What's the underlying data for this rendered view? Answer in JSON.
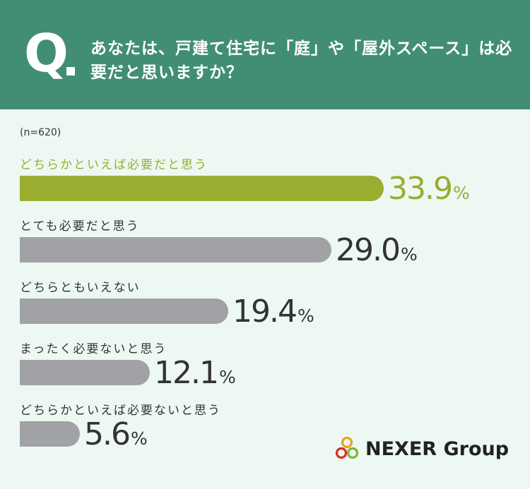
{
  "question": {
    "mark": "Q",
    "text": "あなたは、戸建て住宅に「庭」や「屋外スペース」は必要だと思いますか？"
  },
  "sample_size": "(n=620)",
  "colors": {
    "header": "#428e75",
    "background": "#eef8f3",
    "highlight": "#9aad30",
    "bar": "#a1a2a6",
    "text": "#333333"
  },
  "chart_data": {
    "type": "bar",
    "orientation": "horizontal",
    "unit": "%",
    "categories": [
      "どちらかといえば必要だと思う",
      "とても必要だと思う",
      "どちらともいえない",
      "まったく必要ないと思う",
      "どちらかといえば必要ないと思う"
    ],
    "values": [
      33.9,
      29.0,
      19.4,
      12.1,
      5.6
    ],
    "labels": [
      "33.9",
      "29.0",
      "19.4",
      "12.1",
      "5.6"
    ],
    "highlight_index": 0
  },
  "logo": {
    "text": "NEXER Group",
    "icon": "interlocking-rings-icon"
  }
}
